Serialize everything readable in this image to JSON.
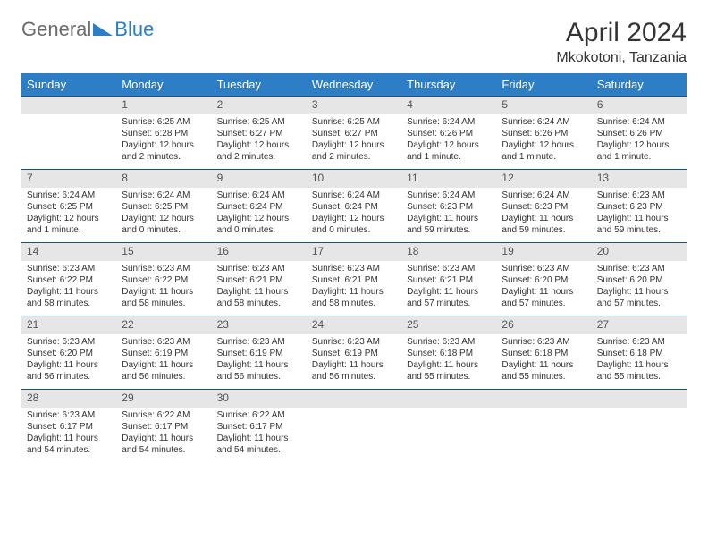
{
  "header": {
    "logo_general": "General",
    "logo_blue": "Blue",
    "month_title": "April 2024",
    "location": "Mkokotoni, Tanzania"
  },
  "day_names": [
    "Sunday",
    "Monday",
    "Tuesday",
    "Wednesday",
    "Thursday",
    "Friday",
    "Saturday"
  ],
  "colors": {
    "header_bg": "#2d7ec4",
    "header_text": "#ffffff",
    "daynum_bg": "#e6e6e6",
    "daynum_border": "#1e4f7a",
    "text": "#333333",
    "logo_gray": "#6b6b6b",
    "logo_blue": "#2d7ec4"
  },
  "weeks": [
    [
      {
        "n": "",
        "sr": "",
        "ss": "",
        "dl": ""
      },
      {
        "n": "1",
        "sr": "Sunrise: 6:25 AM",
        "ss": "Sunset: 6:28 PM",
        "dl": "Daylight: 12 hours and 2 minutes."
      },
      {
        "n": "2",
        "sr": "Sunrise: 6:25 AM",
        "ss": "Sunset: 6:27 PM",
        "dl": "Daylight: 12 hours and 2 minutes."
      },
      {
        "n": "3",
        "sr": "Sunrise: 6:25 AM",
        "ss": "Sunset: 6:27 PM",
        "dl": "Daylight: 12 hours and 2 minutes."
      },
      {
        "n": "4",
        "sr": "Sunrise: 6:24 AM",
        "ss": "Sunset: 6:26 PM",
        "dl": "Daylight: 12 hours and 1 minute."
      },
      {
        "n": "5",
        "sr": "Sunrise: 6:24 AM",
        "ss": "Sunset: 6:26 PM",
        "dl": "Daylight: 12 hours and 1 minute."
      },
      {
        "n": "6",
        "sr": "Sunrise: 6:24 AM",
        "ss": "Sunset: 6:26 PM",
        "dl": "Daylight: 12 hours and 1 minute."
      }
    ],
    [
      {
        "n": "7",
        "sr": "Sunrise: 6:24 AM",
        "ss": "Sunset: 6:25 PM",
        "dl": "Daylight: 12 hours and 1 minute."
      },
      {
        "n": "8",
        "sr": "Sunrise: 6:24 AM",
        "ss": "Sunset: 6:25 PM",
        "dl": "Daylight: 12 hours and 0 minutes."
      },
      {
        "n": "9",
        "sr": "Sunrise: 6:24 AM",
        "ss": "Sunset: 6:24 PM",
        "dl": "Daylight: 12 hours and 0 minutes."
      },
      {
        "n": "10",
        "sr": "Sunrise: 6:24 AM",
        "ss": "Sunset: 6:24 PM",
        "dl": "Daylight: 12 hours and 0 minutes."
      },
      {
        "n": "11",
        "sr": "Sunrise: 6:24 AM",
        "ss": "Sunset: 6:23 PM",
        "dl": "Daylight: 11 hours and 59 minutes."
      },
      {
        "n": "12",
        "sr": "Sunrise: 6:24 AM",
        "ss": "Sunset: 6:23 PM",
        "dl": "Daylight: 11 hours and 59 minutes."
      },
      {
        "n": "13",
        "sr": "Sunrise: 6:23 AM",
        "ss": "Sunset: 6:23 PM",
        "dl": "Daylight: 11 hours and 59 minutes."
      }
    ],
    [
      {
        "n": "14",
        "sr": "Sunrise: 6:23 AM",
        "ss": "Sunset: 6:22 PM",
        "dl": "Daylight: 11 hours and 58 minutes."
      },
      {
        "n": "15",
        "sr": "Sunrise: 6:23 AM",
        "ss": "Sunset: 6:22 PM",
        "dl": "Daylight: 11 hours and 58 minutes."
      },
      {
        "n": "16",
        "sr": "Sunrise: 6:23 AM",
        "ss": "Sunset: 6:21 PM",
        "dl": "Daylight: 11 hours and 58 minutes."
      },
      {
        "n": "17",
        "sr": "Sunrise: 6:23 AM",
        "ss": "Sunset: 6:21 PM",
        "dl": "Daylight: 11 hours and 58 minutes."
      },
      {
        "n": "18",
        "sr": "Sunrise: 6:23 AM",
        "ss": "Sunset: 6:21 PM",
        "dl": "Daylight: 11 hours and 57 minutes."
      },
      {
        "n": "19",
        "sr": "Sunrise: 6:23 AM",
        "ss": "Sunset: 6:20 PM",
        "dl": "Daylight: 11 hours and 57 minutes."
      },
      {
        "n": "20",
        "sr": "Sunrise: 6:23 AM",
        "ss": "Sunset: 6:20 PM",
        "dl": "Daylight: 11 hours and 57 minutes."
      }
    ],
    [
      {
        "n": "21",
        "sr": "Sunrise: 6:23 AM",
        "ss": "Sunset: 6:20 PM",
        "dl": "Daylight: 11 hours and 56 minutes."
      },
      {
        "n": "22",
        "sr": "Sunrise: 6:23 AM",
        "ss": "Sunset: 6:19 PM",
        "dl": "Daylight: 11 hours and 56 minutes."
      },
      {
        "n": "23",
        "sr": "Sunrise: 6:23 AM",
        "ss": "Sunset: 6:19 PM",
        "dl": "Daylight: 11 hours and 56 minutes."
      },
      {
        "n": "24",
        "sr": "Sunrise: 6:23 AM",
        "ss": "Sunset: 6:19 PM",
        "dl": "Daylight: 11 hours and 56 minutes."
      },
      {
        "n": "25",
        "sr": "Sunrise: 6:23 AM",
        "ss": "Sunset: 6:18 PM",
        "dl": "Daylight: 11 hours and 55 minutes."
      },
      {
        "n": "26",
        "sr": "Sunrise: 6:23 AM",
        "ss": "Sunset: 6:18 PM",
        "dl": "Daylight: 11 hours and 55 minutes."
      },
      {
        "n": "27",
        "sr": "Sunrise: 6:23 AM",
        "ss": "Sunset: 6:18 PM",
        "dl": "Daylight: 11 hours and 55 minutes."
      }
    ],
    [
      {
        "n": "28",
        "sr": "Sunrise: 6:23 AM",
        "ss": "Sunset: 6:17 PM",
        "dl": "Daylight: 11 hours and 54 minutes."
      },
      {
        "n": "29",
        "sr": "Sunrise: 6:22 AM",
        "ss": "Sunset: 6:17 PM",
        "dl": "Daylight: 11 hours and 54 minutes."
      },
      {
        "n": "30",
        "sr": "Sunrise: 6:22 AM",
        "ss": "Sunset: 6:17 PM",
        "dl": "Daylight: 11 hours and 54 minutes."
      },
      {
        "n": "",
        "sr": "",
        "ss": "",
        "dl": ""
      },
      {
        "n": "",
        "sr": "",
        "ss": "",
        "dl": ""
      },
      {
        "n": "",
        "sr": "",
        "ss": "",
        "dl": ""
      },
      {
        "n": "",
        "sr": "",
        "ss": "",
        "dl": ""
      }
    ]
  ]
}
